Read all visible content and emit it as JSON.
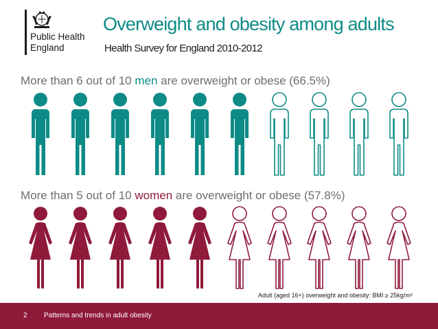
{
  "logo": {
    "line1": "Public Health",
    "line2": "England"
  },
  "header": {
    "title": "Overweight and obesity among adults",
    "subtitle": "Health Survey for England 2010-2012"
  },
  "men": {
    "text_before": "More than 6 out of 10 ",
    "highlight": "men",
    "text_after": " are overweight or obese (66.5%)",
    "percent": 66.5,
    "filled": 6,
    "total": 10,
    "color": "#0e8b86"
  },
  "women": {
    "text_before": "More than 5 out of 10 ",
    "highlight": "women",
    "text_after": " are overweight or obese (57.8%)",
    "percent": 57.8,
    "filled": 5,
    "total": 10,
    "color": "#8f1a3a"
  },
  "footnote": "Adult (aged 16+) overweight and obesity: BMI ≥ 25kg/m²",
  "footer": {
    "page_number": "2",
    "text": "Patterns and trends in adult obesity",
    "color": "#8f1a3a"
  },
  "icons": [
    "crest-icon",
    "man-icon",
    "woman-icon"
  ]
}
